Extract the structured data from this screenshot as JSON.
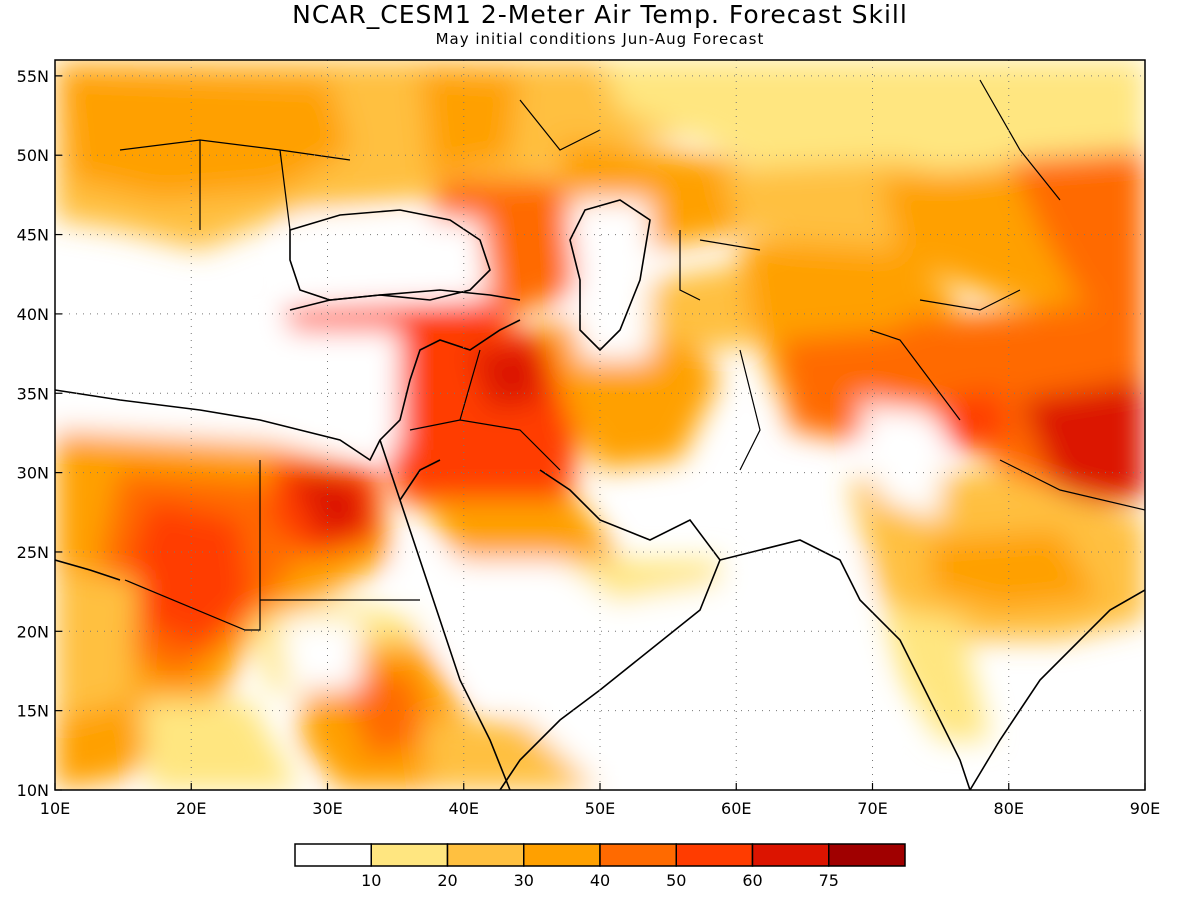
{
  "title": "NCAR_CESM1 2-Meter Air Temp. Forecast Skill",
  "subtitle": "May initial conditions  Jun-Aug Forecast",
  "map": {
    "lon_range": [
      10,
      90
    ],
    "lat_range": [
      10,
      56
    ],
    "lon_ticks": [
      "10E",
      "20E",
      "30E",
      "40E",
      "50E",
      "60E",
      "70E",
      "80E",
      "90E"
    ],
    "lat_ticks": [
      "10N",
      "15N",
      "20N",
      "25N",
      "30N",
      "35N",
      "40N",
      "45N",
      "50N",
      "55N"
    ]
  },
  "colorbar": {
    "levels": [
      "10",
      "20",
      "30",
      "40",
      "50",
      "60",
      "75"
    ],
    "colors": [
      "#ffffff",
      "#ffe680",
      "#ffc040",
      "#ffa000",
      "#ff6a00",
      "#ff3c00",
      "#dc1400",
      "#a00000"
    ]
  },
  "chart_data": {
    "type": "heatmap",
    "title": "NCAR_CESM1 2-Meter Air Temp. Forecast Skill",
    "subtitle": "May initial conditions  Jun-Aug Forecast",
    "x_range": [
      10,
      90
    ],
    "y_range": [
      10,
      56
    ],
    "levels": [
      10,
      20,
      30,
      40,
      50,
      60,
      75
    ],
    "regions": [
      {
        "lon": 25,
        "lat": 50,
        "skill": 30
      },
      {
        "lon": 43,
        "lat": 35,
        "skill": 55
      },
      {
        "lon": 32,
        "lat": 28,
        "skill": 60
      },
      {
        "lon": 20,
        "lat": 23,
        "skill": 55
      },
      {
        "lon": 87,
        "lat": 31,
        "skill": 65
      },
      {
        "lon": 70,
        "lat": 33,
        "skill": 50
      },
      {
        "lon": 56,
        "lat": 33,
        "skill": 35
      },
      {
        "lon": 60,
        "lat": 50,
        "skill": 20
      },
      {
        "lon": 35,
        "lat": 18,
        "skill": 30
      },
      {
        "lon": 80,
        "lat": 23,
        "skill": 40
      }
    ]
  }
}
